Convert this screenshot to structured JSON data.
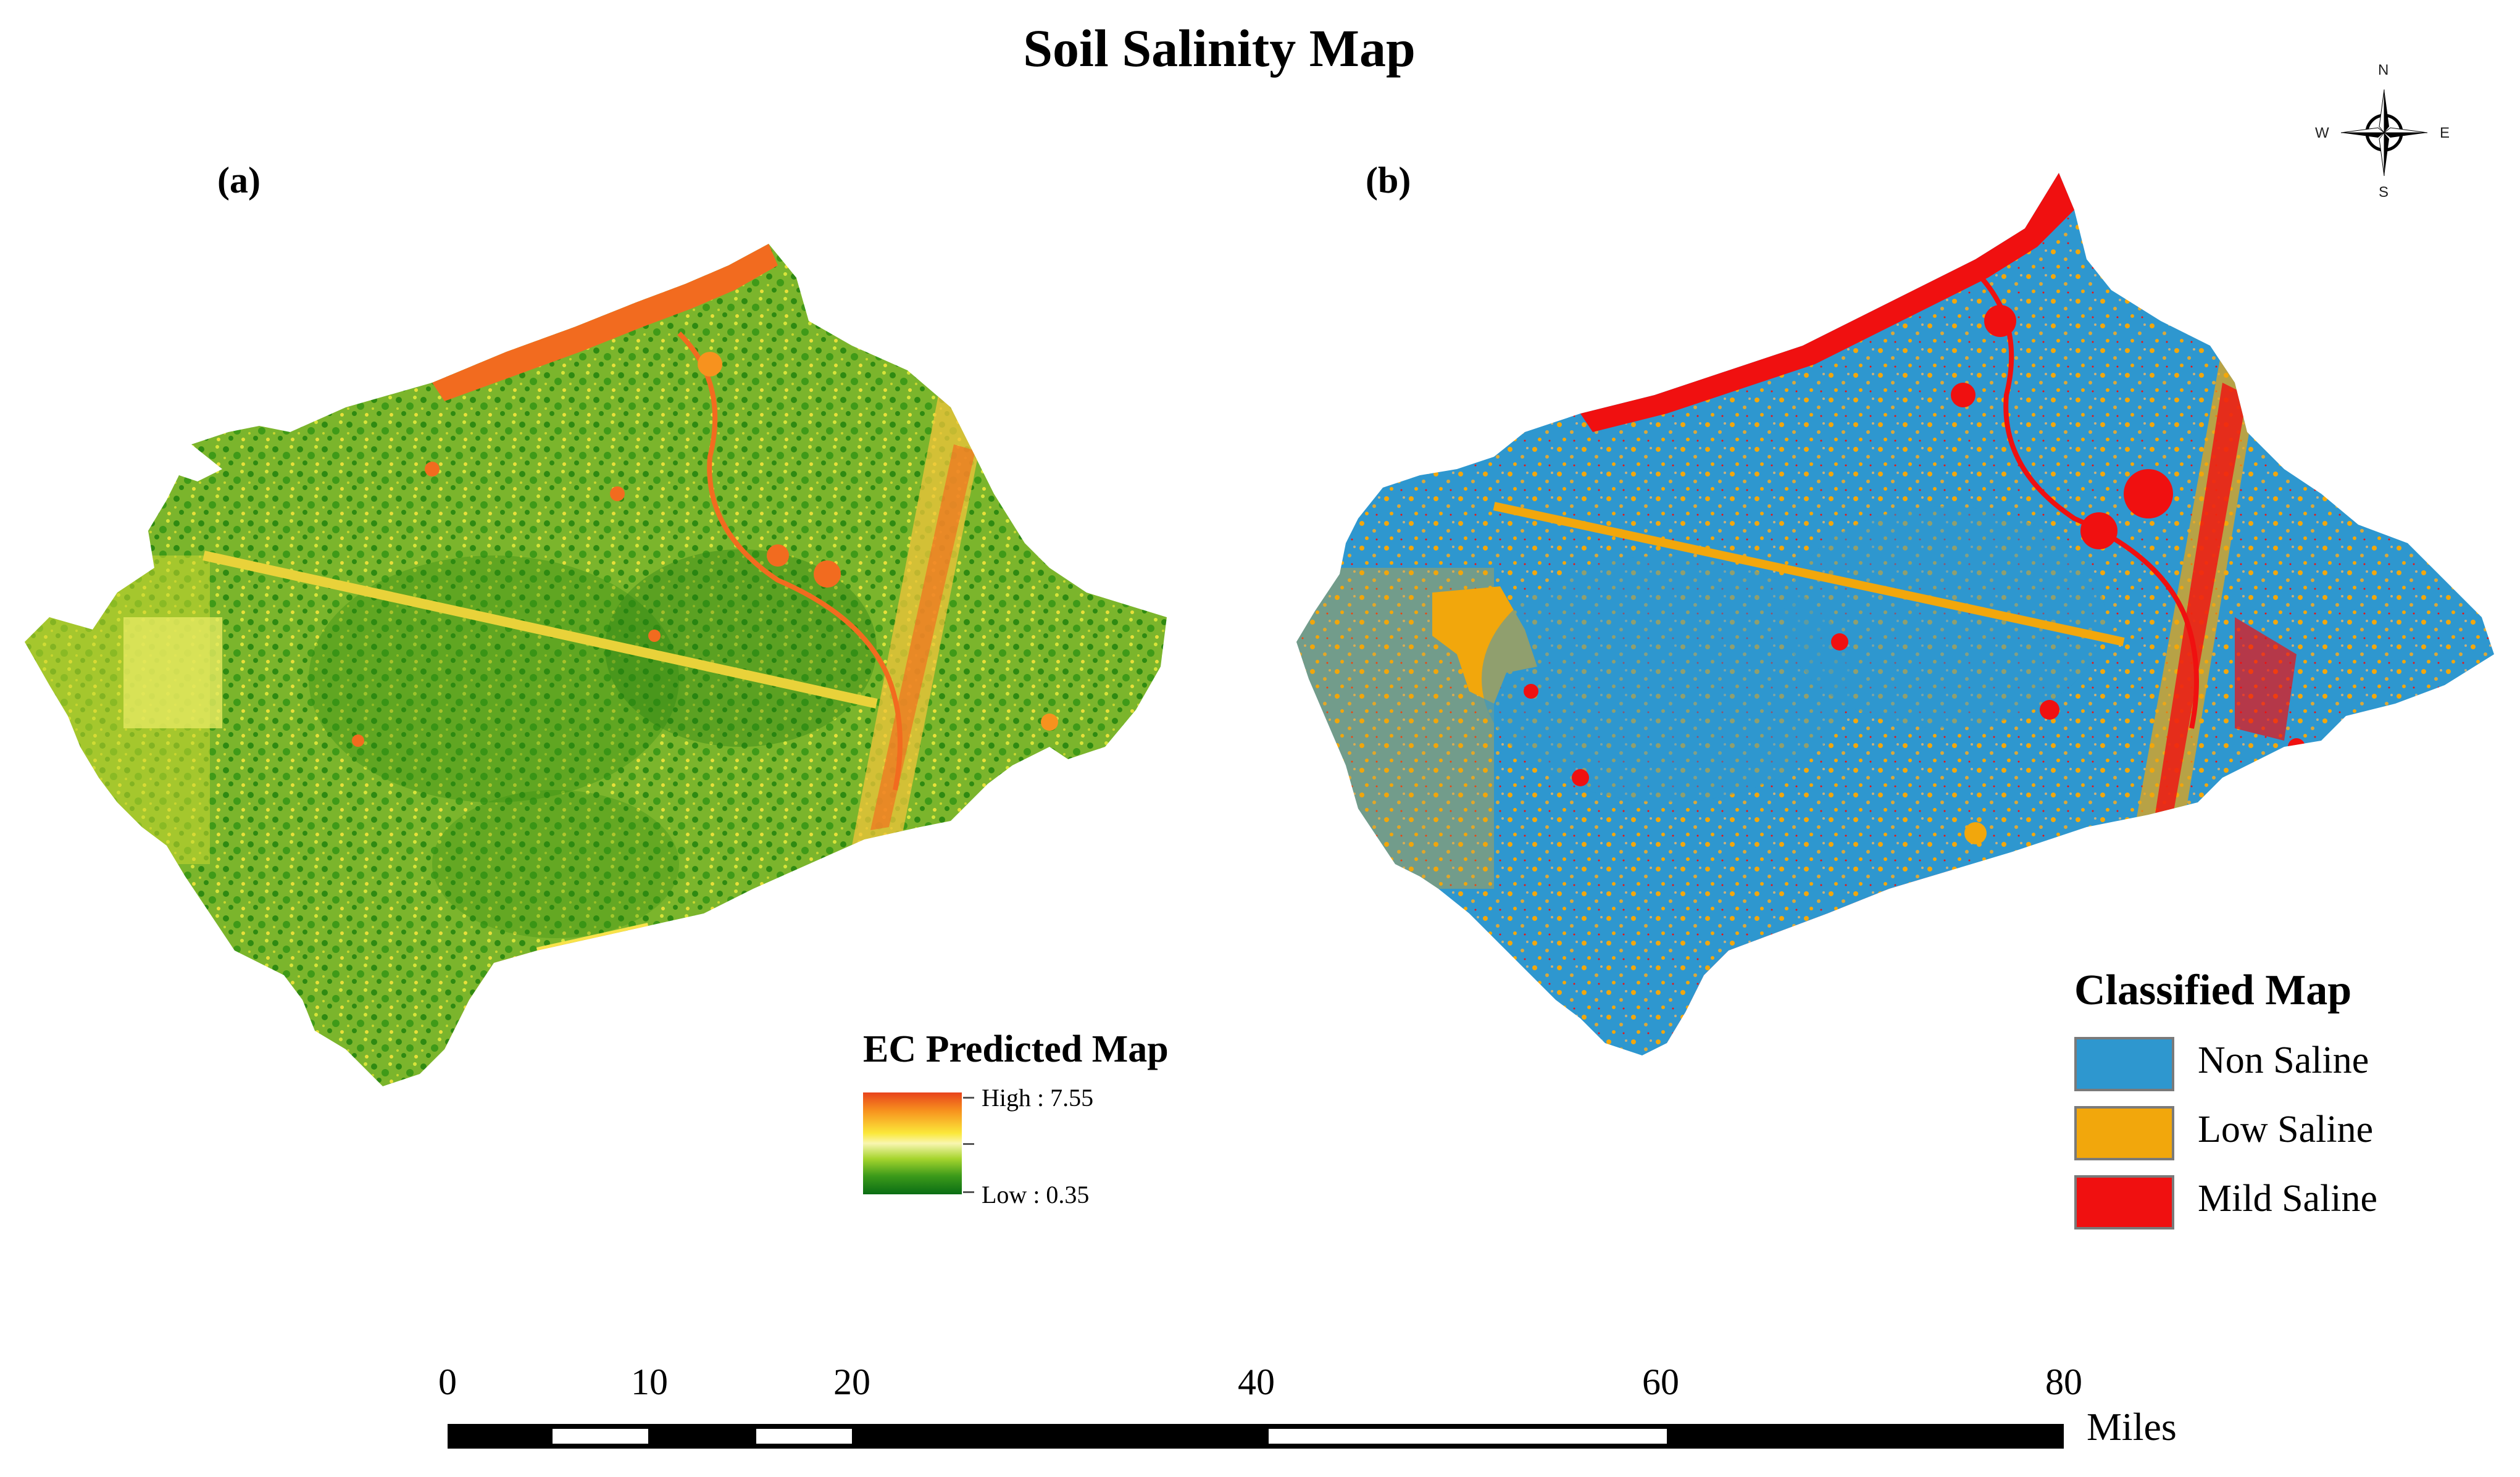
{
  "title": "Soil Salinity Map",
  "panels": {
    "a": "(a)",
    "b": "(b)"
  },
  "ec_legend": {
    "title": "EC Predicted Map",
    "high_label": "High : 7.55",
    "low_label": "Low : 0.35",
    "high_value": 7.55,
    "low_value": 0.35,
    "colors": [
      "#e8431c",
      "#f7921e",
      "#fbe83a",
      "#a6d52e",
      "#0a6d14"
    ]
  },
  "classified_legend": {
    "title": "Classified Map",
    "classes": [
      {
        "label": "Non Saline",
        "color": "#2e97cf"
      },
      {
        "label": "Low Saline",
        "color": "#f2a70c"
      },
      {
        "label": "Mild Saline",
        "color": "#f01010"
      }
    ]
  },
  "compass": {
    "north": "N",
    "south": "S",
    "east": "E",
    "west": "W"
  },
  "scale_bar": {
    "ticks": [
      "0",
      "10",
      "20",
      "40",
      "60",
      "80"
    ],
    "unit": "Miles"
  },
  "colors": {
    "map_a_base": "#7bb52c",
    "map_a_dark": "#2f8a12",
    "map_a_hot": "#f26b1f",
    "map_b_base": "#2e97cf",
    "map_b_low": "#f2a70c",
    "map_b_mild": "#f01010"
  }
}
